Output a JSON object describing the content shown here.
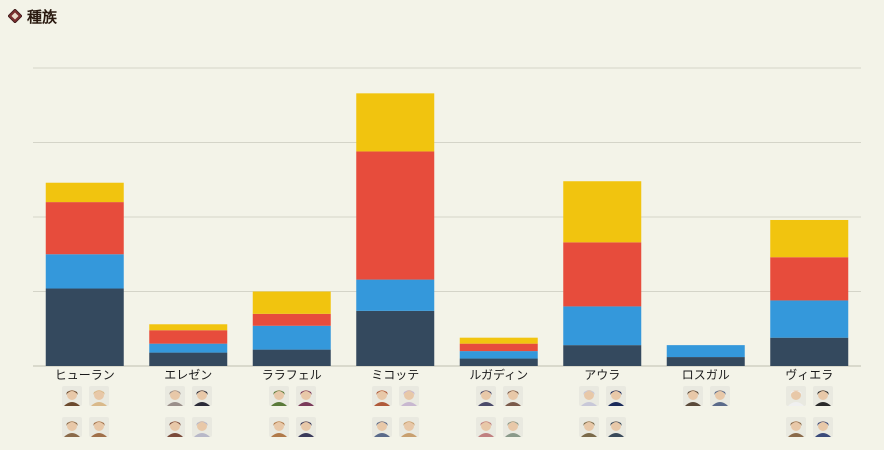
{
  "header": {
    "title": "種族",
    "icon": "diamond-bullet-icon"
  },
  "colors": {
    "background": "#f3f3e8",
    "grid": "#d4d4c8",
    "series": [
      "#34495e",
      "#3498db",
      "#e74c3c",
      "#f1c40f"
    ]
  },
  "chart_data": {
    "type": "bar",
    "stacked": true,
    "title": "種族",
    "categories": [
      "ヒューラン",
      "エレゼン",
      "ララフェル",
      "ミコッテ",
      "ルガディン",
      "アウラ",
      "ロスガル",
      "ヴィエラ"
    ],
    "series": [
      {
        "values": [
          52,
          9,
          11,
          37,
          5,
          14,
          6,
          19
        ]
      },
      {
        "values": [
          23,
          6,
          16,
          21,
          5,
          26,
          8,
          25
        ]
      },
      {
        "values": [
          35,
          9,
          8,
          86,
          5,
          43,
          0,
          29
        ]
      },
      {
        "values": [
          13,
          4,
          15,
          39,
          4,
          41,
          0,
          25
        ]
      }
    ],
    "ylim": [
      0,
      200
    ],
    "yticks": [
      0,
      50,
      100,
      150,
      200
    ],
    "grid": true,
    "legend": "none",
    "avatar_icons": [
      [
        "hyur-portrait-icon",
        "hyur-portrait-icon",
        "hyur-portrait-icon",
        "hyur-portrait-icon"
      ],
      [
        "elezen-portrait-icon",
        "elezen-portrait-icon",
        "elezen-portrait-icon",
        "elezen-portrait-icon"
      ],
      [
        "lalafell-portrait-icon",
        "lalafell-portrait-icon",
        "lalafell-portrait-icon",
        "lalafell-portrait-icon"
      ],
      [
        "miqote-portrait-icon",
        "miqote-portrait-icon",
        "miqote-portrait-icon",
        "miqote-portrait-icon"
      ],
      [
        "roegadyn-portrait-icon",
        "roegadyn-portrait-icon",
        "roegadyn-portrait-icon",
        "roegadyn-portrait-icon"
      ],
      [
        "aura-portrait-icon",
        "aura-portrait-icon",
        "aura-portrait-icon",
        "aura-portrait-icon"
      ],
      [
        "hrothgar-portrait-icon",
        "hrothgar-portrait-icon"
      ],
      [
        "viera-portrait-icon",
        "viera-portrait-icon",
        "viera-portrait-icon",
        "viera-portrait-icon"
      ]
    ],
    "avatar_colors": [
      [
        "#6b4a2e",
        "#d9b98a",
        "#8a6a4a",
        "#a0704a"
      ],
      [
        "#9a8f8a",
        "#2b2b38",
        "#7a4a3a",
        "#b8b8c8"
      ],
      [
        "#5a7a3a",
        "#7a3a5a",
        "#b07a4a",
        "#3a3a5a"
      ],
      [
        "#b05a3a",
        "#c8b8d0",
        "#5a6a8a",
        "#c8a070"
      ],
      [
        "#4a4a6a",
        "#7a5a4a",
        "#c08080",
        "#8a9a8a"
      ],
      [
        "#c8c8d8",
        "#1a2a5a",
        "#7a6a4a",
        "#3a4a5a"
      ],
      [
        "#5a4a3a",
        "#5a6a8a"
      ],
      [
        "#f0f0f0",
        "#2a2a2a",
        "#8a6a4a",
        "#3a4a7a"
      ]
    ]
  }
}
